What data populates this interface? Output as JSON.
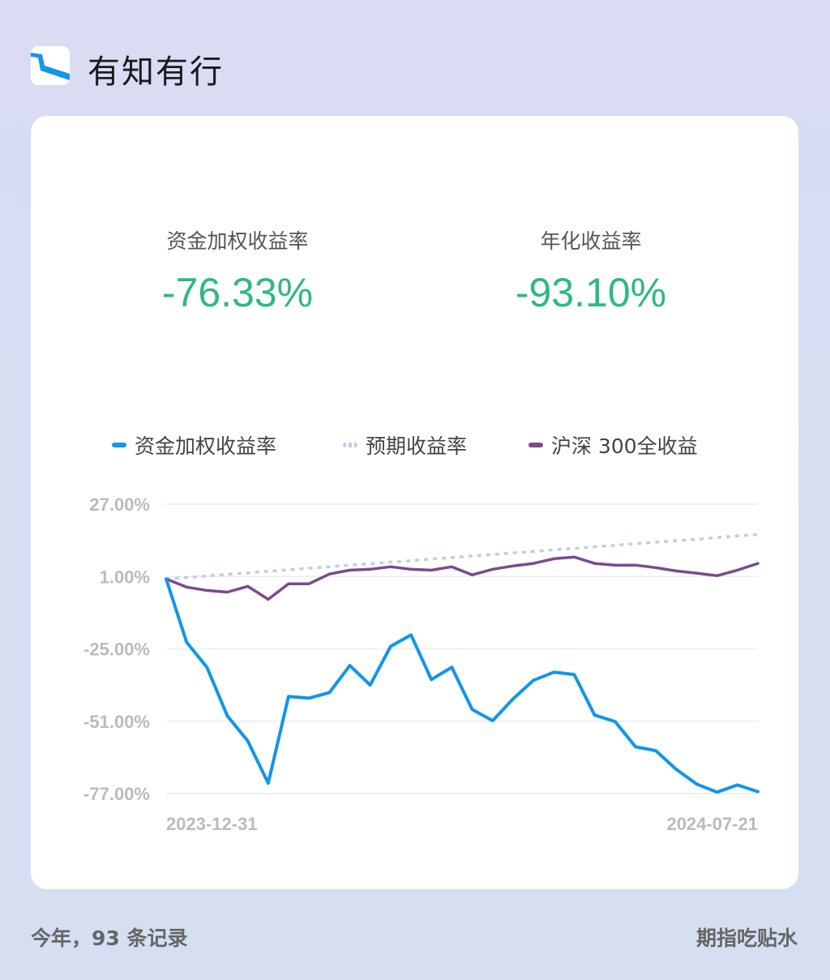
{
  "app": {
    "title": "有知有行",
    "logo_icon": "river-logo-icon"
  },
  "metrics": [
    {
      "label": "资金加权收益率",
      "value": "-76.33%"
    },
    {
      "label": "年化收益率",
      "value": "-93.10%"
    }
  ],
  "footer": {
    "left": "今年，93 条记录",
    "right": "期指吃贴水"
  },
  "colors": {
    "positive_value": "#2fb886",
    "series_fund": "#1296e8",
    "series_expected": "#c3cbe4",
    "series_index": "#7b4a8e"
  },
  "chart_data": {
    "type": "line",
    "title": "",
    "xlabel": "",
    "ylabel": "",
    "ylim": [
      -77,
      27
    ],
    "y_ticks": [
      27,
      1,
      -25,
      -51,
      -77
    ],
    "y_tick_labels": [
      "27.00%",
      "1.00%",
      "-25.00%",
      "-51.00%",
      "-77.00%"
    ],
    "x_tick_labels": [
      "2023-12-31",
      "2024-07-21"
    ],
    "grid": true,
    "legend_placement": "top",
    "series": [
      {
        "name": "资金加权收益率",
        "style": "solid",
        "color": "#1296e8",
        "values": [
          0.1,
          -22.6,
          -31.6,
          -49.1,
          -58.1,
          -73.3,
          -42.1,
          -42.7,
          -40.7,
          -31.0,
          -38.0,
          -24.1,
          -20.0,
          -36.0,
          -31.6,
          -46.8,
          -50.8,
          -43.0,
          -36.3,
          -33.4,
          -34.2,
          -48.8,
          -51.1,
          -60.2,
          -61.6,
          -68.3,
          -73.6,
          -76.5,
          -73.9,
          -76.3
        ]
      },
      {
        "name": "预期收益率",
        "style": "dotted",
        "color": "#c3cbe4",
        "values": [
          0.1,
          0.7,
          1.2,
          1.8,
          2.3,
          2.9,
          3.4,
          4.0,
          4.5,
          5.1,
          5.6,
          6.2,
          6.7,
          7.3,
          7.8,
          8.4,
          8.9,
          9.5,
          10.0,
          10.6,
          11.1,
          11.7,
          12.2,
          12.8,
          13.3,
          13.9,
          14.4,
          15.0,
          15.6,
          16.1
        ]
      },
      {
        "name": "沪深 300全收益",
        "style": "solid",
        "color": "#7b4a8e",
        "values": [
          0.1,
          -2.8,
          -4.0,
          -4.6,
          -2.5,
          -7.2,
          -1.6,
          -1.6,
          1.9,
          3.3,
          3.6,
          4.5,
          3.6,
          3.3,
          4.5,
          1.6,
          3.6,
          4.8,
          5.7,
          7.4,
          8.0,
          5.7,
          5.1,
          5.1,
          4.2,
          3.0,
          2.2,
          1.3,
          3.3,
          5.7
        ]
      }
    ]
  }
}
